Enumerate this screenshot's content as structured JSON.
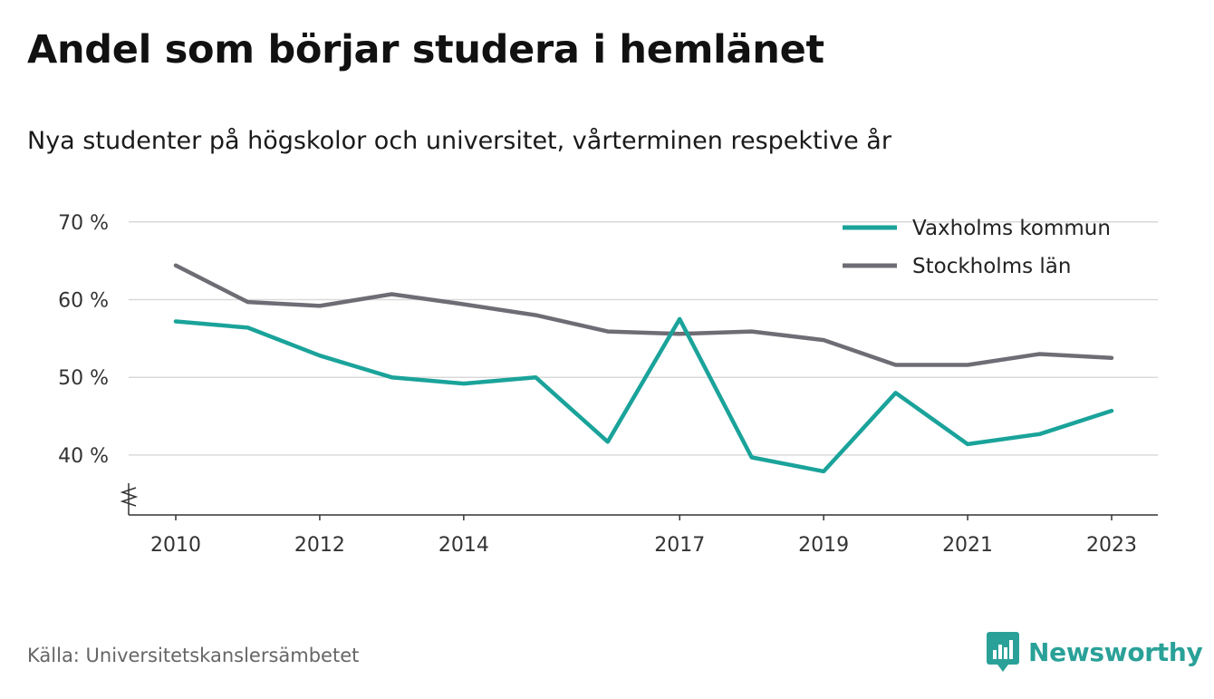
{
  "title": "Andel som börjar studera i hemlänet",
  "subtitle": "Nya studenter på högskolor och universitet, vårterminen respektive år",
  "source": "Källa: Universitetskanslersämbetet",
  "brand": {
    "name": "Newsworthy",
    "icon": "newsworthy-logo-icon",
    "color": "#2aa198"
  },
  "chart_data": {
    "type": "line",
    "title": "Andel som börjar studera i hemlänet",
    "subtitle": "Nya studenter på högskolor och universitet, vårterminen respektive år",
    "x": [
      2010,
      2011,
      2012,
      2013,
      2014,
      2015,
      2016,
      2017,
      2018,
      2019,
      2020,
      2021,
      2022,
      2023
    ],
    "x_ticks": [
      "2010",
      "2012",
      "2014",
      "2017",
      "2019",
      "2021",
      "2023"
    ],
    "y_ticks": [
      "40 %",
      "50 %",
      "60 %",
      "70 %"
    ],
    "ylim": [
      32.5,
      70
    ],
    "y_axis_break": true,
    "grid": true,
    "legend_position": "top-right",
    "series": [
      {
        "name": "Vaxholms kommun",
        "color": "#1aa39a",
        "values": [
          57.2,
          56.4,
          52.8,
          50.0,
          49.2,
          50.0,
          41.7,
          57.5,
          39.7,
          37.9,
          48.0,
          41.4,
          42.7,
          45.7
        ]
      },
      {
        "name": "Stockholms län",
        "color": "#6e6d75",
        "values": [
          64.4,
          59.7,
          59.2,
          60.7,
          59.4,
          58.0,
          55.9,
          55.6,
          55.9,
          54.8,
          51.6,
          51.6,
          53.0,
          52.5
        ]
      }
    ]
  }
}
